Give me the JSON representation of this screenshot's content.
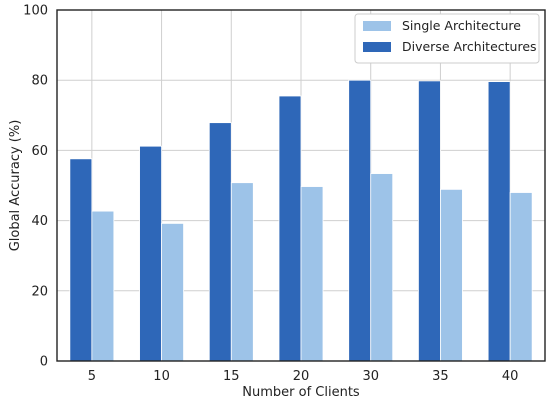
{
  "chart_data": {
    "type": "bar",
    "xlabel": "Number of Clients",
    "ylabel": "Global Accuracy (%)",
    "categories": [
      "5",
      "10",
      "15",
      "20",
      "30",
      "35",
      "40"
    ],
    "ylim": [
      0,
      100
    ],
    "yticks": [
      0,
      20,
      40,
      60,
      80,
      100
    ],
    "grid": true,
    "legend_position": "top-right",
    "series": [
      {
        "name": "Single Architecture",
        "color": "#9dc3e8",
        "values": [
          42.7,
          39.2,
          50.8,
          49.7,
          53.4,
          48.9,
          48.0
        ]
      },
      {
        "name": "Diverse Architectures",
        "color": "#2e67b8",
        "values": [
          57.6,
          61.2,
          67.9,
          75.5,
          80.0,
          79.8,
          79.6
        ]
      }
    ]
  }
}
